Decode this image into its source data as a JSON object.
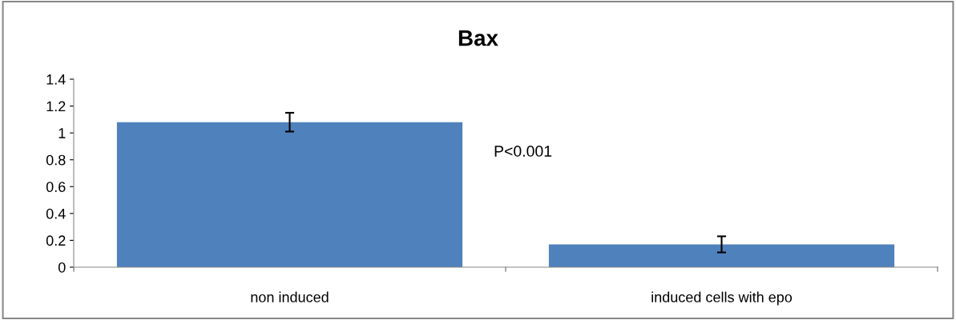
{
  "chart_data": {
    "type": "bar",
    "title": "Bax",
    "categories": [
      "non induced",
      "induced cells with epo"
    ],
    "values": [
      1.08,
      0.17
    ],
    "errors": [
      0.07,
      0.06
    ],
    "color": "#4f81bd",
    "ylim": [
      0,
      1.4
    ],
    "yticks": [
      0,
      0.2,
      0.4,
      0.6,
      0.8,
      1,
      1.2,
      1.4
    ],
    "annotations": [
      "P<0.001"
    ],
    "grid": false
  }
}
